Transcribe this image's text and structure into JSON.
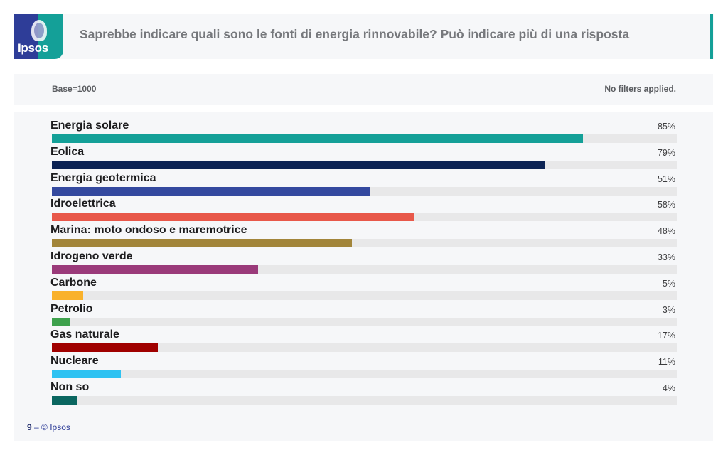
{
  "header": {
    "logo_text": "Ipsos",
    "title": "Saprebbe indicare quali sono le fonti di energia rinnovabile? Può indicare più di una risposta",
    "accent_color": "#14a098"
  },
  "info": {
    "base": "Base=1000",
    "filters": "No filters applied."
  },
  "footer": {
    "page": "9",
    "separator": " – ",
    "copyright": "© Ipsos"
  },
  "chart_data": {
    "type": "bar",
    "orientation": "horizontal",
    "title": "Saprebbe indicare quali sono le fonti di energia rinnovabile? Può indicare più di una risposta",
    "xlabel": "",
    "ylabel": "",
    "xlim": [
      0,
      100
    ],
    "unit": "%",
    "grid": false,
    "legend": null,
    "categories": [
      "Energia solare",
      "Eolica",
      "Energia geotermica",
      "Idroelettrica",
      "Marina: moto ondoso e maremotrice",
      "Idrogeno verde",
      "Carbone",
      "Petrolio",
      "Gas naturale",
      "Nucleare",
      "Non so"
    ],
    "values": [
      85,
      79,
      51,
      58,
      48,
      33,
      5,
      3,
      17,
      11,
      4
    ],
    "labels": [
      "85%",
      "79%",
      "51%",
      "58%",
      "48%",
      "33%",
      "5%",
      "3%",
      "17%",
      "11%",
      "4%"
    ],
    "colors": [
      "#14a098",
      "#0c2354",
      "#34499f",
      "#e8584a",
      "#a2853a",
      "#9a3a7a",
      "#f9b12b",
      "#3ea14d",
      "#a00000",
      "#2ec2f2",
      "#0a6660"
    ]
  }
}
